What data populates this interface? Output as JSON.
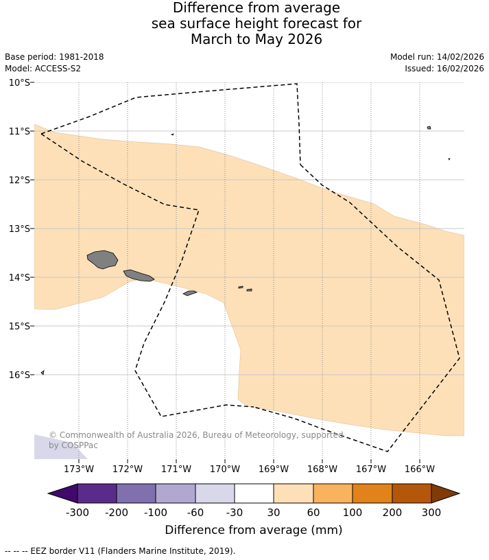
{
  "title": {
    "line1": "Difference from average",
    "line2": "sea surface height forecast for",
    "line3": "March to May 2026"
  },
  "meta": {
    "base_period": "Base period: 1981-2018",
    "model": "Model: ACCESS-S2",
    "model_run": "Model run: 14/02/2026",
    "issued": "Issued: 16/02/2026"
  },
  "map": {
    "lat_labels": [
      "10°S",
      "11°S",
      "12°S",
      "13°S",
      "14°S",
      "15°S",
      "16°S"
    ],
    "lon_labels": [
      "173°W",
      "172°W",
      "171°W",
      "170°W",
      "169°W",
      "168°W",
      "167°W",
      "166°W"
    ],
    "copyright_line1": "© Commonwealth of Australia 2026, Bureau of Meteorology, supported",
    "copyright_line2": "by COSPPac",
    "colors": {
      "anomaly_30_60": "#fde0b8",
      "anomaly_-60_-30": "#d8d8ea",
      "land": "#808080",
      "grid": "#c8c8c8",
      "eez_border": "#000000"
    }
  },
  "colorbar": {
    "tick_labels": [
      "-300",
      "-200",
      "-100",
      "-60",
      "-30",
      "30",
      "60",
      "100",
      "200",
      "300"
    ],
    "colors": [
      "#3f0a6b",
      "#5a2c8a",
      "#8170ae",
      "#b0a8d1",
      "#d8d8ea",
      "#ffffff",
      "#fde0b8",
      "#f9b35f",
      "#e1821a",
      "#b4570b",
      "#7f3b08"
    ],
    "label": "Difference from average (mm)"
  },
  "footer": {
    "legend_text": "--  --  -- EEZ border V11 (Flanders Marine Institute, 2019)."
  }
}
